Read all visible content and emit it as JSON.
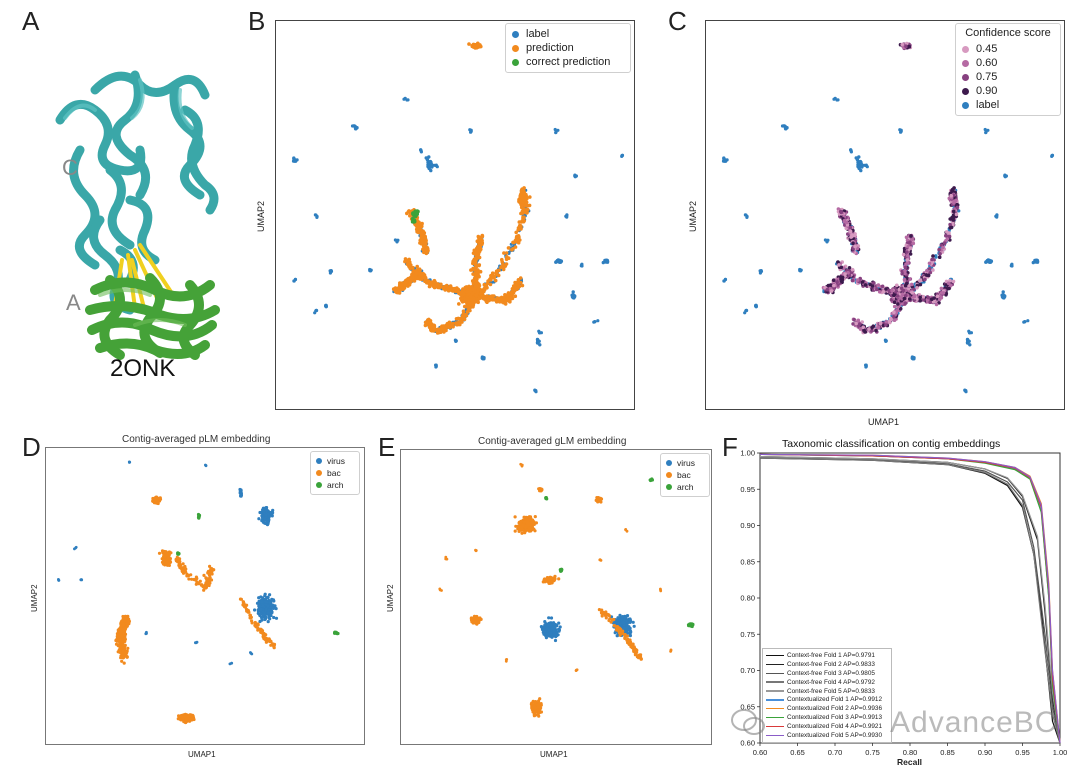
{
  "colors": {
    "label": "#2f7fbf",
    "prediction": "#f28a1e",
    "correct": "#3aa33a",
    "virus": "#2f7fbf",
    "bac": "#f28a1e",
    "arch": "#3aa33a",
    "teal": "#3aa7a8",
    "green": "#45a238",
    "yellow": "#f0d020"
  },
  "panels": {
    "A": {
      "letter": "A",
      "chain_top": "C",
      "chain_bottom": "A",
      "pdb_id": "2ONK"
    },
    "B": {
      "letter": "B",
      "ylabel": "UMAP2",
      "legend": [
        {
          "label": "label",
          "color": "#2f7fbf"
        },
        {
          "label": "prediction",
          "color": "#f28a1e"
        },
        {
          "label": "correct prediction",
          "color": "#3aa33a"
        }
      ]
    },
    "C": {
      "letter": "C",
      "ylabel": "UMAP2",
      "xlabel": "UMAP1",
      "legend_title": "Confidence score",
      "legend": [
        {
          "label": "0.45",
          "color": "#d79ac0"
        },
        {
          "label": "0.60",
          "color": "#b56aa3"
        },
        {
          "label": "0.75",
          "color": "#874180"
        },
        {
          "label": "0.90",
          "color": "#3d1a4d"
        },
        {
          "label": "label",
          "color": "#2f7fbf"
        }
      ]
    },
    "D": {
      "letter": "D",
      "title": "Contig-averaged pLM embedding",
      "xlabel": "UMAP1",
      "ylabel": "UMAP2",
      "legend": [
        {
          "label": "virus",
          "color": "#2f7fbf"
        },
        {
          "label": "bac",
          "color": "#f28a1e"
        },
        {
          "label": "arch",
          "color": "#3aa33a"
        }
      ]
    },
    "E": {
      "letter": "E",
      "title": "Contig-averaged gLM embedding",
      "xlabel": "UMAP1",
      "ylabel": "UMAP2",
      "legend": [
        {
          "label": "virus",
          "color": "#2f7fbf"
        },
        {
          "label": "bac",
          "color": "#f28a1e"
        },
        {
          "label": "arch",
          "color": "#3aa33a"
        }
      ]
    },
    "F": {
      "letter": "F",
      "title": "Taxonomic classification on contig embeddings",
      "xlabel": "Recall",
      "watermark": "AdvanceBC"
    }
  },
  "chart_data": [
    {
      "type": "line",
      "title": "Taxonomic classification on contig embeddings",
      "xlabel": "Recall",
      "ylabel": "",
      "xlim": [
        0.6,
        1.0
      ],
      "ylim": [
        0.6,
        1.0
      ],
      "x_ticks": [
        "0.60",
        "0.65",
        "0.70",
        "0.75",
        "0.80",
        "0.85",
        "0.90",
        "0.95",
        "1.00"
      ],
      "y_ticks": [
        "0.60",
        "0.65",
        "0.70",
        "0.75",
        "0.80",
        "0.85",
        "0.90",
        "0.95",
        "1.00"
      ],
      "series": [
        {
          "name": "Context-free Fold 1 AP=0.9791",
          "color": "#111111",
          "x": [
            0.6,
            0.75,
            0.85,
            0.9,
            0.93,
            0.95,
            0.965,
            0.975,
            0.985,
            0.99,
            1.0
          ],
          "y": [
            0.993,
            0.99,
            0.984,
            0.972,
            0.955,
            0.925,
            0.86,
            0.78,
            0.68,
            0.63,
            0.6
          ]
        },
        {
          "name": "Context-free Fold 2 AP=0.9833",
          "color": "#222222",
          "x": [
            0.6,
            0.75,
            0.85,
            0.9,
            0.93,
            0.95,
            0.97,
            0.98,
            0.99,
            1.0
          ],
          "y": [
            0.995,
            0.992,
            0.987,
            0.978,
            0.965,
            0.94,
            0.88,
            0.78,
            0.66,
            0.6
          ]
        },
        {
          "name": "Context-free Fold 3 AP=0.9805",
          "color": "#555555",
          "x": [
            0.6,
            0.75,
            0.85,
            0.9,
            0.93,
            0.95,
            0.965,
            0.98,
            0.99,
            1.0
          ],
          "y": [
            0.994,
            0.991,
            0.985,
            0.975,
            0.96,
            0.935,
            0.87,
            0.75,
            0.65,
            0.6
          ]
        },
        {
          "name": "Context-free Fold 4 AP=0.9792",
          "color": "#777777",
          "x": [
            0.6,
            0.75,
            0.85,
            0.9,
            0.93,
            0.95,
            0.965,
            0.975,
            0.99,
            1.0
          ],
          "y": [
            0.993,
            0.99,
            0.984,
            0.973,
            0.957,
            0.928,
            0.86,
            0.77,
            0.64,
            0.6
          ]
        },
        {
          "name": "Context-free Fold 5 AP=0.9833",
          "color": "#999999",
          "x": [
            0.6,
            0.75,
            0.85,
            0.9,
            0.93,
            0.95,
            0.97,
            0.98,
            0.99,
            1.0
          ],
          "y": [
            0.995,
            0.992,
            0.987,
            0.978,
            0.966,
            0.942,
            0.885,
            0.79,
            0.67,
            0.6
          ]
        },
        {
          "name": "Contextualized Fold 1 AP=0.9912",
          "color": "#4a90d9",
          "x": [
            0.6,
            0.75,
            0.85,
            0.9,
            0.94,
            0.96,
            0.975,
            0.985,
            0.99,
            1.0
          ],
          "y": [
            0.998,
            0.996,
            0.992,
            0.987,
            0.978,
            0.965,
            0.92,
            0.8,
            0.68,
            0.6
          ]
        },
        {
          "name": "Contextualized Fold 2 AP=0.9936",
          "color": "#f28a1e",
          "x": [
            0.6,
            0.75,
            0.85,
            0.9,
            0.94,
            0.96,
            0.975,
            0.985,
            0.99,
            1.0
          ],
          "y": [
            0.998,
            0.997,
            0.993,
            0.988,
            0.98,
            0.968,
            0.93,
            0.82,
            0.7,
            0.6
          ]
        },
        {
          "name": "Contextualized Fold 3 AP=0.9913",
          "color": "#3aa33a",
          "x": [
            0.6,
            0.75,
            0.85,
            0.9,
            0.94,
            0.96,
            0.975,
            0.985,
            0.99,
            1.0
          ],
          "y": [
            0.998,
            0.996,
            0.992,
            0.986,
            0.977,
            0.964,
            0.918,
            0.8,
            0.68,
            0.6
          ]
        },
        {
          "name": "Contextualized Fold 4 AP=0.9921",
          "color": "#d93a3a",
          "x": [
            0.6,
            0.75,
            0.85,
            0.9,
            0.94,
            0.96,
            0.975,
            0.985,
            0.99,
            1.0
          ],
          "y": [
            0.998,
            0.996,
            0.992,
            0.987,
            0.979,
            0.966,
            0.925,
            0.81,
            0.69,
            0.6
          ]
        },
        {
          "name": "Contextualized Fold 5 AP=0.9930",
          "color": "#8a5cc8",
          "x": [
            0.6,
            0.75,
            0.85,
            0.9,
            0.94,
            0.96,
            0.975,
            0.985,
            0.99,
            1.0
          ],
          "y": [
            0.998,
            0.997,
            0.993,
            0.988,
            0.98,
            0.967,
            0.928,
            0.815,
            0.7,
            0.6
          ]
        }
      ]
    }
  ]
}
